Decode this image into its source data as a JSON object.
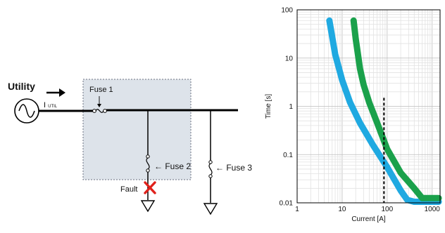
{
  "diagram": {
    "utility_label": "Utility",
    "current_label_main": "I",
    "current_label_sub": "UTIL",
    "fuse1_label": "Fuse 1",
    "fuse2_label": "← Fuse 2",
    "fuse3_label": "← Fuse 3",
    "fault_label": "Fault",
    "colors": {
      "zone_fill": "#dde3ea",
      "fault_mark": "#e0211b",
      "line": "#000000"
    }
  },
  "chart_data": {
    "type": "line",
    "xscale": "log",
    "yscale": "log",
    "xlim": [
      1,
      1500
    ],
    "ylim": [
      0.01,
      100
    ],
    "xlabel": "Current [A]",
    "ylabel": "Time [s]",
    "xticks": [
      1,
      10,
      100,
      1000
    ],
    "xtick_labels": [
      "1",
      "10",
      "100",
      "1000"
    ],
    "yticks": [
      0.01,
      0.1,
      1,
      10,
      100
    ],
    "ytick_labels": [
      "0.01",
      "0.1",
      "1",
      "10",
      "100"
    ],
    "grid": true,
    "series": [
      {
        "color": "#1fa9e1",
        "x": [
          5.2,
          7,
          10,
          15,
          25,
          50,
          100,
          200,
          280,
          400,
          1000,
          1400
        ],
        "y": [
          60,
          12,
          3.5,
          1.2,
          0.45,
          0.15,
          0.055,
          0.018,
          0.0115,
          0.0105,
          0.0105,
          0.0105
        ]
      },
      {
        "color": "#1aa14b",
        "x": [
          18,
          20,
          25,
          30,
          40,
          60,
          100,
          200,
          400,
          600,
          1400
        ],
        "y": [
          60,
          25,
          6,
          2.8,
          1.2,
          0.45,
          0.13,
          0.042,
          0.02,
          0.0125,
          0.0125
        ]
      }
    ],
    "reference_line": {
      "x": 85,
      "style": "dashed",
      "color": "#000000"
    }
  }
}
